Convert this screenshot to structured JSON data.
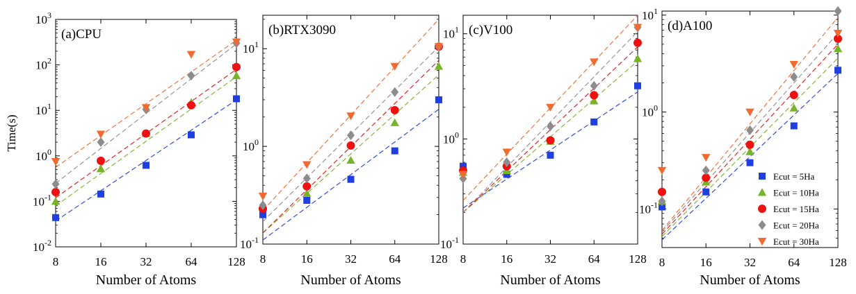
{
  "figure": {
    "ylabel": "Time(s)",
    "legend": {
      "placement": "lower-right of panel (d)",
      "entries": [
        {
          "label": "Ecut =   5Ha",
          "color": "#1f3fe0",
          "marker": "square"
        },
        {
          "label": "Ecut = 10Ha",
          "color": "#78b428",
          "marker": "triangle-up"
        },
        {
          "label": "Ecut = 15Ha",
          "color": "#ee1111",
          "marker": "circle"
        },
        {
          "label": "Ecut = 20Ha",
          "color": "#8c8c8c",
          "marker": "diamond"
        },
        {
          "label": "Ecut = 30Ha",
          "color": "#f26a30",
          "marker": "triangle-down"
        }
      ]
    }
  },
  "chart_data": [
    {
      "type": "scatter",
      "title": "(a)CPU",
      "xlabel": "Number of Atoms",
      "ylabel": "Time(s)",
      "x": [
        8,
        16,
        32,
        64,
        128
      ],
      "xscale": "log2",
      "yscale": "log",
      "xlim": [
        8,
        128
      ],
      "ylim": [
        0.01,
        1000
      ],
      "yticks": [
        {
          "value": 0.01,
          "base": "10",
          "exp": "-2"
        },
        {
          "value": 0.1,
          "base": "10",
          "exp": "-1"
        },
        {
          "value": 1,
          "base": "10",
          "exp": "0"
        },
        {
          "value": 10,
          "base": "10",
          "exp": "1"
        },
        {
          "value": 100,
          "base": "10",
          "exp": "2"
        },
        {
          "value": 1000,
          "base": "10",
          "exp": "3"
        }
      ],
      "series": [
        {
          "name": "Ecut =   5Ha",
          "values": [
            0.044,
            0.145,
            0.62,
            2.9,
            18
          ],
          "fit": [
            0.037,
            17
          ]
        },
        {
          "name": "Ecut = 10Ha",
          "values": [
            0.1,
            0.52,
            3.1,
            15,
            58
          ],
          "fit": [
            0.08,
            55
          ]
        },
        {
          "name": "Ecut = 15Ha",
          "values": [
            0.16,
            0.78,
            3.1,
            13,
            90
          ],
          "fit": [
            0.12,
            80
          ]
        },
        {
          "name": "Ecut = 20Ha",
          "values": [
            0.24,
            2.0,
            10.5,
            58,
            300
          ],
          "fit": [
            0.25,
            290
          ]
        },
        {
          "name": "Ecut = 30Ha",
          "values": [
            0.75,
            3.0,
            11.5,
            170,
            320
          ],
          "fit": [
            0.56,
            350
          ]
        }
      ]
    },
    {
      "type": "scatter",
      "title": "(b)RTX3090",
      "xlabel": "Number of Atoms",
      "ylabel": "",
      "x": [
        8,
        16,
        32,
        64,
        128
      ],
      "xscale": "log2",
      "yscale": "log",
      "xlim": [
        8,
        128
      ],
      "ylim": [
        0.1,
        22
      ],
      "yticks": [
        {
          "value": 0.1,
          "base": "10",
          "exp": "-1"
        },
        {
          "value": 1,
          "base": "10",
          "exp": "0"
        },
        {
          "value": 10,
          "base": "10",
          "exp": "1"
        }
      ],
      "series": [
        {
          "name": "Ecut =   5Ha",
          "values": [
            0.2,
            0.28,
            0.46,
            0.9,
            3.0
          ],
          "fit": [
            0.11,
            2.4
          ]
        },
        {
          "name": "Ecut = 10Ha",
          "values": [
            0.24,
            0.33,
            0.72,
            1.75,
            6.6
          ],
          "fit": [
            0.13,
            5.4
          ]
        },
        {
          "name": "Ecut = 15Ha",
          "values": [
            0.23,
            0.39,
            1.02,
            2.35,
            10.5
          ],
          "fit": [
            0.13,
            7.6
          ]
        },
        {
          "name": "Ecut = 20Ha",
          "values": [
            0.25,
            0.47,
            1.3,
            3.6,
            10.5
          ],
          "fit": [
            0.17,
            10.5
          ]
        },
        {
          "name": "Ecut = 30Ha",
          "values": [
            0.31,
            0.65,
            2.05,
            6.6,
            10.5
          ],
          "fit": [
            0.22,
            20
          ]
        }
      ]
    },
    {
      "type": "scatter",
      "title": "(c)V100",
      "xlabel": "Number of Atoms",
      "ylabel": "",
      "x": [
        8,
        16,
        32,
        64,
        128
      ],
      "xscale": "log2",
      "yscale": "log",
      "xlim": [
        8,
        128
      ],
      "ylim": [
        0.1,
        15
      ],
      "yticks": [
        {
          "value": 0.1,
          "base": "10",
          "exp": "-1"
        },
        {
          "value": 1,
          "base": "10",
          "exp": "0"
        },
        {
          "value": 10,
          "base": "10",
          "exp": "1"
        }
      ],
      "series": [
        {
          "name": "Ecut =   5Ha",
          "values": [
            0.55,
            0.46,
            0.7,
            1.45,
            3.2
          ],
          "fit": [
            0.22,
            2.8
          ]
        },
        {
          "name": "Ecut = 10Ha",
          "values": [
            0.48,
            0.5,
            0.95,
            2.3,
            5.8
          ],
          "fit": [
            0.2,
            5.5
          ]
        },
        {
          "name": "Ecut = 15Ha",
          "values": [
            0.5,
            0.55,
            0.97,
            2.6,
            8.2
          ],
          "fit": [
            0.2,
            7.5
          ]
        },
        {
          "name": "Ecut = 20Ha",
          "values": [
            0.42,
            0.6,
            1.32,
            3.2,
            11.5
          ],
          "fit": [
            0.2,
            10.5
          ]
        },
        {
          "name": "Ecut = 30Ha",
          "values": [
            0.46,
            0.75,
            2.0,
            5.4,
            11.5
          ],
          "fit": [
            0.26,
            15
          ]
        }
      ]
    },
    {
      "type": "scatter",
      "title": "(d)A100",
      "xlabel": "Number of Atoms",
      "ylabel": "",
      "x": [
        8,
        16,
        32,
        64,
        128
      ],
      "xscale": "log2",
      "yscale": "log",
      "xlim": [
        8,
        128
      ],
      "ylim": [
        0.04,
        11
      ],
      "yticks": [
        {
          "value": 0.1,
          "base": "10",
          "exp": "-1"
        },
        {
          "value": 1,
          "base": "10",
          "exp": "0"
        },
        {
          "value": 10,
          "base": "10",
          "exp": "1"
        }
      ],
      "series": [
        {
          "name": "Ecut =   5Ha",
          "values": [
            0.105,
            0.15,
            0.3,
            0.72,
            2.7
          ],
          "fit": [
            0.048,
            2.5
          ]
        },
        {
          "name": "Ecut = 10Ha",
          "values": [
            0.12,
            0.19,
            0.39,
            1.1,
            4.5
          ],
          "fit": [
            0.052,
            3.6
          ]
        },
        {
          "name": "Ecut = 15Ha",
          "values": [
            0.15,
            0.21,
            0.46,
            1.5,
            5.7
          ],
          "fit": [
            0.055,
            5.0
          ]
        },
        {
          "name": "Ecut = 20Ha",
          "values": [
            0.12,
            0.25,
            0.65,
            2.3,
            11
          ],
          "fit": [
            0.058,
            6.5
          ]
        },
        {
          "name": "Ecut = 30Ha",
          "values": [
            0.25,
            0.34,
            1.0,
            3.1,
            6.5
          ],
          "fit": [
            0.06,
            9.5
          ]
        }
      ]
    }
  ]
}
